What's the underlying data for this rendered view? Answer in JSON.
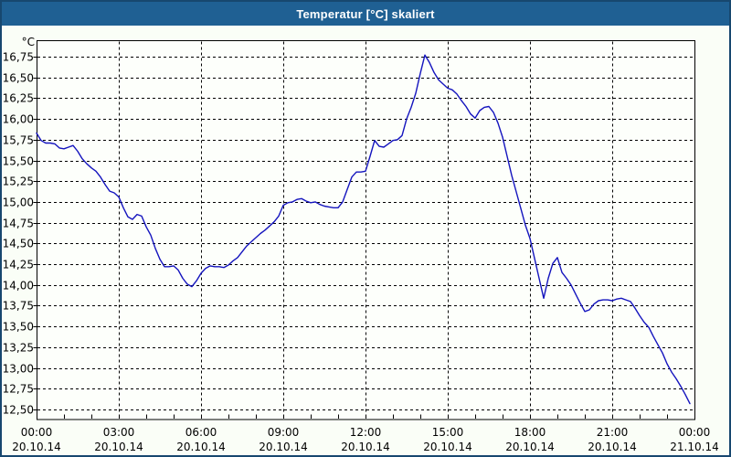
{
  "chart_data": {
    "type": "line",
    "title": "Temperatur [°C] skaliert",
    "unit_label": "°C",
    "decimal_separator": ",",
    "grid": {
      "dashed": true,
      "color": "#000000"
    },
    "y_axis": {
      "min": 12.5,
      "max": 16.75,
      "tick_step": 0.25,
      "tick_values": [
        16.75,
        16.5,
        16.25,
        16.0,
        15.75,
        15.5,
        15.25,
        15.0,
        14.75,
        14.5,
        14.25,
        14.0,
        13.75,
        13.5,
        13.25,
        13.0,
        12.75,
        12.5
      ]
    },
    "x_axis": {
      "hours_span": 24,
      "minor_tick_hours": 1,
      "major_tick_hours": 3,
      "ticks": [
        {
          "hour": 0,
          "time": "00:00",
          "date": "20.10.14"
        },
        {
          "hour": 3,
          "time": "03:00",
          "date": "20.10.14"
        },
        {
          "hour": 6,
          "time": "06:00",
          "date": "20.10.14"
        },
        {
          "hour": 9,
          "time": "09:00",
          "date": "20.10.14"
        },
        {
          "hour": 12,
          "time": "12:00",
          "date": "20.10.14"
        },
        {
          "hour": 15,
          "time": "15:00",
          "date": "20.10.14"
        },
        {
          "hour": 18,
          "time": "18:00",
          "date": "20.10.14"
        },
        {
          "hour": 21,
          "time": "21:00",
          "date": "20.10.14"
        },
        {
          "hour": 24,
          "time": "00:00",
          "date": "21.10.14"
        }
      ]
    },
    "series": [
      {
        "name": "Temperatur",
        "color": "#1414be",
        "start_hour": 0,
        "interval_minutes": 10,
        "values": [
          15.83,
          15.74,
          15.71,
          15.71,
          15.7,
          15.65,
          15.64,
          15.66,
          15.68,
          15.61,
          15.52,
          15.46,
          15.41,
          15.37,
          15.3,
          15.21,
          15.13,
          15.11,
          15.06,
          14.93,
          14.82,
          14.79,
          14.85,
          14.83,
          14.7,
          14.6,
          14.44,
          14.31,
          14.22,
          14.22,
          14.23,
          14.18,
          14.08,
          14.01,
          13.98,
          14.05,
          14.14,
          14.2,
          14.23,
          14.22,
          14.22,
          14.21,
          14.24,
          14.29,
          14.33,
          14.4,
          14.47,
          14.52,
          14.57,
          14.62,
          14.66,
          14.71,
          14.76,
          14.83,
          14.96,
          14.99,
          15.0,
          15.03,
          15.04,
          15.01,
          14.99,
          15.0,
          14.97,
          14.95,
          14.94,
          14.93,
          14.93,
          15.0,
          15.15,
          15.3,
          15.36,
          15.36,
          15.37,
          15.55,
          15.74,
          15.67,
          15.66,
          15.7,
          15.74,
          15.75,
          15.8,
          16.0,
          16.14,
          16.31,
          16.55,
          16.77,
          16.68,
          16.56,
          16.47,
          16.42,
          16.37,
          16.35,
          16.3,
          16.22,
          16.15,
          16.06,
          16.01,
          16.1,
          16.14,
          16.15,
          16.08,
          15.95,
          15.78,
          15.55,
          15.32,
          15.12,
          14.92,
          14.72,
          14.56,
          14.32,
          14.08,
          13.84,
          14.08,
          14.26,
          14.33,
          14.15,
          14.08,
          14.0,
          13.89,
          13.78,
          13.68,
          13.7,
          13.77,
          13.81,
          13.82,
          13.82,
          13.81,
          13.83,
          13.84,
          13.82,
          13.8,
          13.72,
          13.63,
          13.55,
          13.49,
          13.38,
          13.28,
          13.18,
          13.05,
          12.95,
          12.87,
          12.78,
          12.68,
          12.57
        ]
      }
    ],
    "colors": {
      "titlebar": "#1f6093",
      "window_border": "#17476f",
      "background": "#fafef7",
      "plot_background": "#fdfffb",
      "line": "#1414be"
    }
  }
}
